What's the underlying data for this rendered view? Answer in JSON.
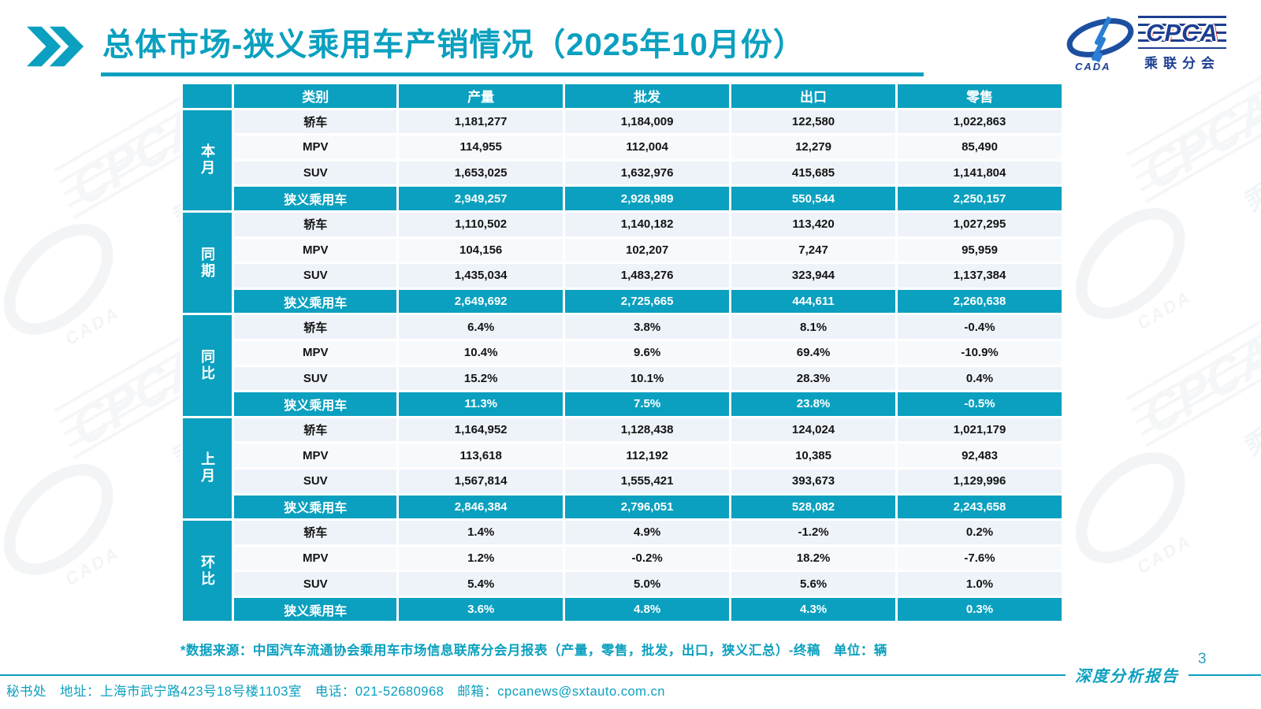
{
  "header": {
    "title": "总体市场-狭义乘用车产销情况（2025年10月份）"
  },
  "logo": {
    "wordmark": "CPCA",
    "subtitle": "乘联分会",
    "swoosh_text": "CADA"
  },
  "watermark": {
    "wordmark": "CPCA",
    "subtitle": "乘联分会",
    "swoosh_text": "CADA"
  },
  "colors": {
    "accent_teal": "#0BA0BF",
    "logo_navy": "#1D3E91",
    "logo_red": "#E2231A",
    "row_blue": "#EEF3FA",
    "row_light": "#F7FAFD"
  },
  "table": {
    "columns": [
      "类别",
      "产量",
      "批发",
      "出口",
      "零售"
    ],
    "groups": [
      {
        "label": "本月",
        "rows": [
          [
            "轿车",
            "1,181,277",
            "1,184,009",
            "122,580",
            "1,022,863"
          ],
          [
            "MPV",
            "114,955",
            "112,004",
            "12,279",
            "85,490"
          ],
          [
            "SUV",
            "1,653,025",
            "1,632,976",
            "415,685",
            "1,141,804"
          ]
        ],
        "summary": [
          "狭义乘用车",
          "2,949,257",
          "2,928,989",
          "550,544",
          "2,250,157"
        ]
      },
      {
        "label": "同期",
        "rows": [
          [
            "轿车",
            "1,110,502",
            "1,140,182",
            "113,420",
            "1,027,295"
          ],
          [
            "MPV",
            "104,156",
            "102,207",
            "7,247",
            "95,959"
          ],
          [
            "SUV",
            "1,435,034",
            "1,483,276",
            "323,944",
            "1,137,384"
          ]
        ],
        "summary": [
          "狭义乘用车",
          "2,649,692",
          "2,725,665",
          "444,611",
          "2,260,638"
        ]
      },
      {
        "label": "同比",
        "rows": [
          [
            "轿车",
            "6.4%",
            "3.8%",
            "8.1%",
            "-0.4%"
          ],
          [
            "MPV",
            "10.4%",
            "9.6%",
            "69.4%",
            "-10.9%"
          ],
          [
            "SUV",
            "15.2%",
            "10.1%",
            "28.3%",
            "0.4%"
          ]
        ],
        "summary": [
          "狭义乘用车",
          "11.3%",
          "7.5%",
          "23.8%",
          "-0.5%"
        ]
      },
      {
        "label": "上月",
        "rows": [
          [
            "轿车",
            "1,164,952",
            "1,128,438",
            "124,024",
            "1,021,179"
          ],
          [
            "MPV",
            "113,618",
            "112,192",
            "10,385",
            "92,483"
          ],
          [
            "SUV",
            "1,567,814",
            "1,555,421",
            "393,673",
            "1,129,996"
          ]
        ],
        "summary": [
          "狭义乘用车",
          "2,846,384",
          "2,796,051",
          "528,082",
          "2,243,658"
        ]
      },
      {
        "label": "环比",
        "rows": [
          [
            "轿车",
            "1.4%",
            "4.9%",
            "-1.2%",
            "0.2%"
          ],
          [
            "MPV",
            "1.2%",
            "-0.2%",
            "18.2%",
            "-7.6%"
          ],
          [
            "SUV",
            "5.4%",
            "5.0%",
            "5.6%",
            "1.0%"
          ]
        ],
        "summary": [
          "狭义乘用车",
          "3.6%",
          "4.8%",
          "4.3%",
          "0.3%"
        ]
      }
    ]
  },
  "footnote": "*数据来源：中国汽车流通协会乘用车市场信息联席分会月报表（产量，零售，批发，出口，狭义汇总）-终稿　单位：辆",
  "footer": {
    "contact": "秘书处　地址：上海市武宁路423号18号楼1103室　电话：021-52680968　邮箱：cpcanews@sxtauto.com.cn",
    "report_label": "深度分析报告",
    "page_number": "3"
  }
}
